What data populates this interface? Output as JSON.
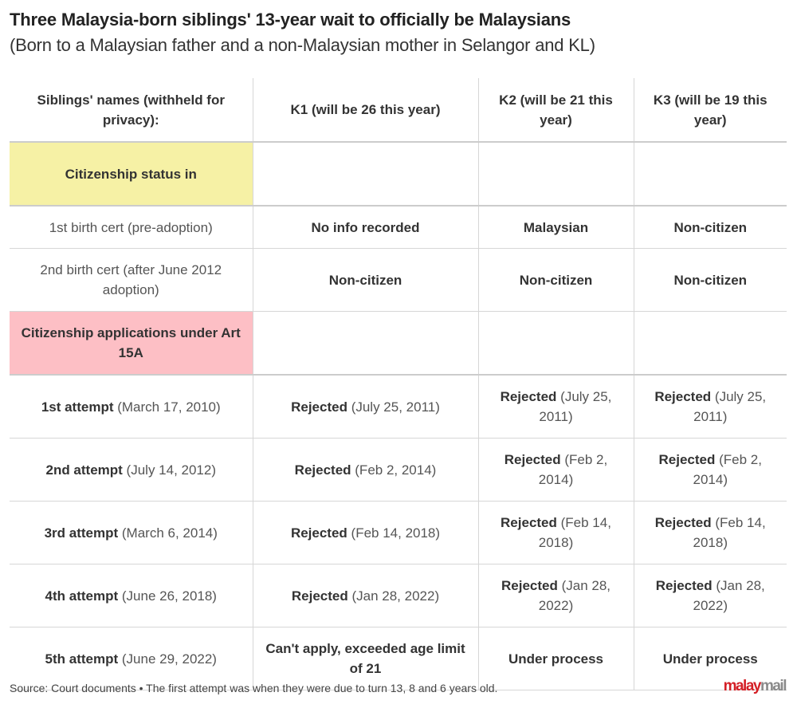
{
  "title": "Three Malaysia-born siblings' 13-year wait to officially be Malaysians",
  "subtitle": "(Born to a Malaysian father and a non-Malaysian mother in Selangor and KL)",
  "colors": {
    "section_status": "#f6f1a5",
    "section_applications": "#fdbfc5",
    "logo_red": "#d41f26",
    "logo_gray": "#8a8a8a"
  },
  "chart_data": {
    "type": "table",
    "headers": [
      "Siblings' names (withheld for privacy):",
      "K1 (will be 26 this year)",
      "K2 (will be 21 this year)",
      "K3 (will be 19 this year)"
    ],
    "rows": [
      {
        "kind": "section",
        "color": "yellow",
        "cells": [
          {
            "b": "Citizenship status in",
            "t": ""
          },
          {
            "b": "",
            "t": ""
          },
          {
            "b": "",
            "t": ""
          },
          {
            "b": "",
            "t": ""
          }
        ]
      },
      {
        "kind": "short",
        "cells": [
          {
            "b": "",
            "t": "1st birth cert (pre-adoption)"
          },
          {
            "b": "No info recorded",
            "t": ""
          },
          {
            "b": "Malaysian",
            "t": ""
          },
          {
            "b": "Non-citizen",
            "t": ""
          }
        ]
      },
      {
        "kind": "tall",
        "cells": [
          {
            "b": "",
            "t": "2nd birth cert (after June 2012 adoption)"
          },
          {
            "b": "Non-citizen",
            "t": ""
          },
          {
            "b": "Non-citizen",
            "t": ""
          },
          {
            "b": "Non-citizen",
            "t": ""
          }
        ]
      },
      {
        "kind": "section",
        "color": "pink",
        "cells": [
          {
            "b": "Citizenship applications under Art 15A",
            "t": ""
          },
          {
            "b": "",
            "t": ""
          },
          {
            "b": "",
            "t": ""
          },
          {
            "b": "",
            "t": ""
          }
        ]
      },
      {
        "kind": "tall",
        "cells": [
          {
            "b": "1st attempt",
            "t": " (March 17, 2010)"
          },
          {
            "b": "Rejected",
            "t": " (July 25, 2011)"
          },
          {
            "b": "Rejected",
            "t": " (July 25, 2011)"
          },
          {
            "b": "Rejected",
            "t": " (July 25, 2011)"
          }
        ]
      },
      {
        "kind": "tall",
        "cells": [
          {
            "b": "2nd attempt",
            "t": " (July 14, 2012)"
          },
          {
            "b": "Rejected",
            "t": " (Feb 2, 2014)"
          },
          {
            "b": "Rejected",
            "t": " (Feb 2, 2014)"
          },
          {
            "b": "Rejected",
            "t": " (Feb 2, 2014)"
          }
        ]
      },
      {
        "kind": "tall",
        "cells": [
          {
            "b": "3rd attempt",
            "t": " (March 6, 2014)"
          },
          {
            "b": "Rejected",
            "t": " (Feb 14, 2018)"
          },
          {
            "b": "Rejected",
            "t": " (Feb 14, 2018)"
          },
          {
            "b": "Rejected",
            "t": " (Feb 14, 2018)"
          }
        ]
      },
      {
        "kind": "tall",
        "cells": [
          {
            "b": "4th attempt",
            "t": " (June 26, 2018)"
          },
          {
            "b": "Rejected",
            "t": " (Jan 28, 2022)"
          },
          {
            "b": "Rejected",
            "t": " (Jan 28, 2022)"
          },
          {
            "b": "Rejected",
            "t": " (Jan 28, 2022)"
          }
        ]
      },
      {
        "kind": "tall",
        "cells": [
          {
            "b": "5th attempt",
            "t": " (June 29, 2022)"
          },
          {
            "b": "Can't apply, exceeded age limit of 21",
            "t": ""
          },
          {
            "b": "Under process",
            "t": ""
          },
          {
            "b": "Under process",
            "t": ""
          }
        ]
      }
    ]
  },
  "footer": "Source: Court documents • The first attempt was when they were due to turn 13, 8 and 6 years old.",
  "logo": {
    "part1": "malay",
    "part2": "mail"
  }
}
